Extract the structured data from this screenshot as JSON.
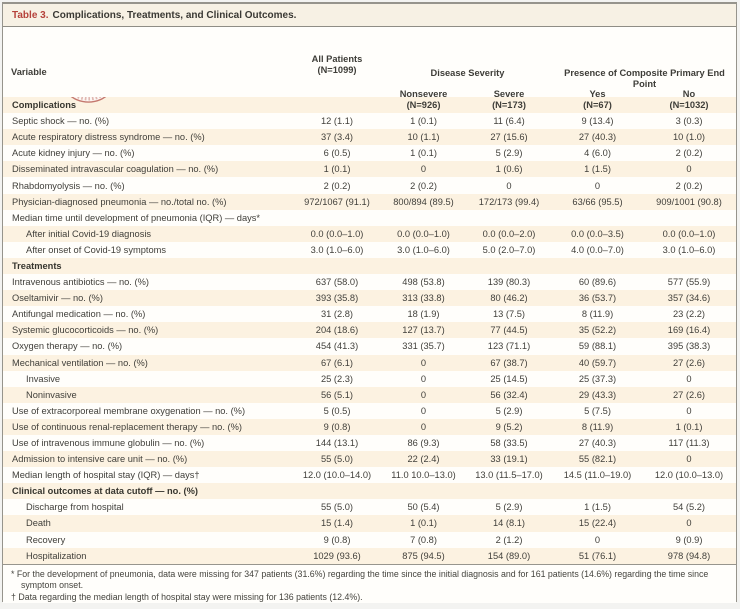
{
  "title": {
    "label": "Table 3.",
    "text": "Complications, Treatments, and Clinical Outcomes."
  },
  "watermark": {
    "the": "The",
    "new_england": "NEW ENGLAND",
    "journal": "JOURNAL",
    "of": "of",
    "medicine": "MEDICINE"
  },
  "header": {
    "variable": "Variable",
    "all_patients_line1": "All Patients",
    "all_patients_line2": "(N=1099)",
    "group1_label": "Disease Severity",
    "group1_sub1_line1": "Nonsevere",
    "group1_sub1_line2": "(N=926)",
    "group1_sub2_line1": "Severe",
    "group1_sub2_line2": "(N=173)",
    "group2_label": "Presence of Composite Primary End Point",
    "group2_sub1_line1": "Yes",
    "group2_sub1_line2": "(N=67)",
    "group2_sub2_line1": "No",
    "group2_sub2_line2": "(N=1032)"
  },
  "table": {
    "rows": [
      {
        "type": "section",
        "indent": 0,
        "label": "Complications"
      },
      {
        "type": "data",
        "indent": 0,
        "label": "Septic shock — no. (%)",
        "values": [
          "12 (1.1)",
          "1 (0.1)",
          "11 (6.4)",
          "9 (13.4)",
          "3 (0.3)"
        ]
      },
      {
        "type": "data",
        "indent": 0,
        "label": "Acute respiratory distress syndrome — no. (%)",
        "values": [
          "37 (3.4)",
          "10 (1.1)",
          "27 (15.6)",
          "27 (40.3)",
          "10 (1.0)"
        ]
      },
      {
        "type": "data",
        "indent": 0,
        "label": "Acute kidney injury — no. (%)",
        "values": [
          "6 (0.5)",
          "1 (0.1)",
          "5 (2.9)",
          "4 (6.0)",
          "2 (0.2)"
        ]
      },
      {
        "type": "data",
        "indent": 0,
        "label": "Disseminated intravascular coagulation — no. (%)",
        "values": [
          "1 (0.1)",
          "0",
          "1 (0.6)",
          "1 (1.5)",
          "0"
        ]
      },
      {
        "type": "data",
        "indent": 0,
        "label": "Rhabdomyolysis — no. (%)",
        "values": [
          "2 (0.2)",
          "2 (0.2)",
          "0",
          "0",
          "2 (0.2)"
        ]
      },
      {
        "type": "data",
        "indent": 0,
        "label": "Physician-diagnosed pneumonia — no./total no. (%)",
        "values": [
          "972/1067 (91.1)",
          "800/894 (89.5)",
          "172/173 (99.4)",
          "63/66 (95.5)",
          "909/1001 (90.8)"
        ]
      },
      {
        "type": "span",
        "indent": 0,
        "label": "Median time until development of pneumonia (IQR) — days*"
      },
      {
        "type": "data",
        "indent": 1,
        "label": "After initial Covid-19 diagnosis",
        "values": [
          "0.0 (0.0–1.0)",
          "0.0 (0.0–1.0)",
          "0.0 (0.0–2.0)",
          "0.0 (0.0–3.5)",
          "0.0 (0.0–1.0)"
        ]
      },
      {
        "type": "data",
        "indent": 1,
        "label": "After onset of Covid-19 symptoms",
        "values": [
          "3.0 (1.0–6.0)",
          "3.0 (1.0–6.0)",
          "5.0 (2.0–7.0)",
          "4.0 (0.0–7.0)",
          "3.0 (1.0–6.0)"
        ]
      },
      {
        "type": "section",
        "indent": 0,
        "label": "Treatments"
      },
      {
        "type": "data",
        "indent": 0,
        "label": "Intravenous antibiotics — no. (%)",
        "values": [
          "637 (58.0)",
          "498 (53.8)",
          "139 (80.3)",
          "60 (89.6)",
          "577 (55.9)"
        ]
      },
      {
        "type": "data",
        "indent": 0,
        "label": "Oseltamivir — no. (%)",
        "values": [
          "393 (35.8)",
          "313 (33.8)",
          "80 (46.2)",
          "36 (53.7)",
          "357 (34.6)"
        ]
      },
      {
        "type": "data",
        "indent": 0,
        "label": "Antifungal medication — no. (%)",
        "values": [
          "31 (2.8)",
          "18 (1.9)",
          "13 (7.5)",
          "8 (11.9)",
          "23 (2.2)"
        ]
      },
      {
        "type": "data",
        "indent": 0,
        "label": "Systemic glucocorticoids — no. (%)",
        "values": [
          "204 (18.6)",
          "127 (13.7)",
          "77 (44.5)",
          "35 (52.2)",
          "169 (16.4)"
        ]
      },
      {
        "type": "data",
        "indent": 0,
        "label": "Oxygen therapy — no. (%)",
        "values": [
          "454 (41.3)",
          "331 (35.7)",
          "123 (71.1)",
          "59 (88.1)",
          "395 (38.3)"
        ]
      },
      {
        "type": "data",
        "indent": 0,
        "label": "Mechanical ventilation — no. (%)",
        "values": [
          "67 (6.1)",
          "0",
          "67 (38.7)",
          "40 (59.7)",
          "27 (2.6)"
        ]
      },
      {
        "type": "data",
        "indent": 1,
        "label": "Invasive",
        "values": [
          "25 (2.3)",
          "0",
          "25 (14.5)",
          "25 (37.3)",
          "0"
        ]
      },
      {
        "type": "data",
        "indent": 1,
        "label": "Noninvasive",
        "values": [
          "56 (5.1)",
          "0",
          "56 (32.4)",
          "29 (43.3)",
          "27 (2.6)"
        ]
      },
      {
        "type": "data",
        "indent": 0,
        "label": "Use of extracorporeal membrane oxygenation — no. (%)",
        "values": [
          "5 (0.5)",
          "0",
          "5 (2.9)",
          "5 (7.5)",
          "0"
        ]
      },
      {
        "type": "data",
        "indent": 0,
        "label": "Use of continuous renal-replacement therapy — no. (%)",
        "values": [
          "9 (0.8)",
          "0",
          "9 (5.2)",
          "8 (11.9)",
          "1 (0.1)"
        ]
      },
      {
        "type": "data",
        "indent": 0,
        "label": "Use of intravenous immune globulin — no. (%)",
        "values": [
          "144 (13.1)",
          "86 (9.3)",
          "58 (33.5)",
          "27 (40.3)",
          "117 (11.3)"
        ]
      },
      {
        "type": "data",
        "indent": 0,
        "label": "Admission to intensive care unit — no. (%)",
        "values": [
          "55 (5.0)",
          "22 (2.4)",
          "33 (19.1)",
          "55 (82.1)",
          "0"
        ]
      },
      {
        "type": "data",
        "indent": 0,
        "label": "Median length of hospital stay (IQR) — days†",
        "values": [
          "12.0 (10.0–14.0)",
          "11.0 10.0–13.0)",
          "13.0 (11.5–17.0)",
          "14.5 (11.0–19.0)",
          "12.0 (10.0–13.0)"
        ]
      },
      {
        "type": "section",
        "indent": 0,
        "label": "Clinical outcomes at data cutoff — no. (%)"
      },
      {
        "type": "data",
        "indent": 1,
        "label": "Discharge from hospital",
        "values": [
          "55 (5.0)",
          "50 (5.4)",
          "5 (2.9)",
          "1 (1.5)",
          "54 (5.2)"
        ]
      },
      {
        "type": "data",
        "indent": 1,
        "label": "Death",
        "values": [
          "15 (1.4)",
          "1 (0.1)",
          "14 (8.1)",
          "15 (22.4)",
          "0"
        ]
      },
      {
        "type": "data",
        "indent": 1,
        "label": "Recovery",
        "values": [
          "9 (0.8)",
          "7 (0.8)",
          "2 (1.2)",
          "0",
          "9 (0.9)"
        ]
      },
      {
        "type": "data",
        "indent": 1,
        "label": "Hospitalization",
        "values": [
          "1029 (93.6)",
          "875 (94.5)",
          "154 (89.0)",
          "51 (76.1)",
          "978 (94.8)"
        ]
      }
    ]
  },
  "footnotes": {
    "note1": "* For the development of pneumonia, data were missing for 347 patients (31.6%) regarding the time since the initial diagnosis and for 161 patients (14.6%) regarding the time since symptom onset.",
    "note2": "† Data regarding the median length of hospital stay were missing for 136 patients (12.4%)."
  },
  "colors": {
    "accent_red": "#b5413a",
    "row_beige": "#fcf2e1",
    "title_bar": "#f7f1e4",
    "seal_pink": "#c4786e",
    "watermark_gray": "#5f5e58",
    "border_gray": "#96948c"
  }
}
